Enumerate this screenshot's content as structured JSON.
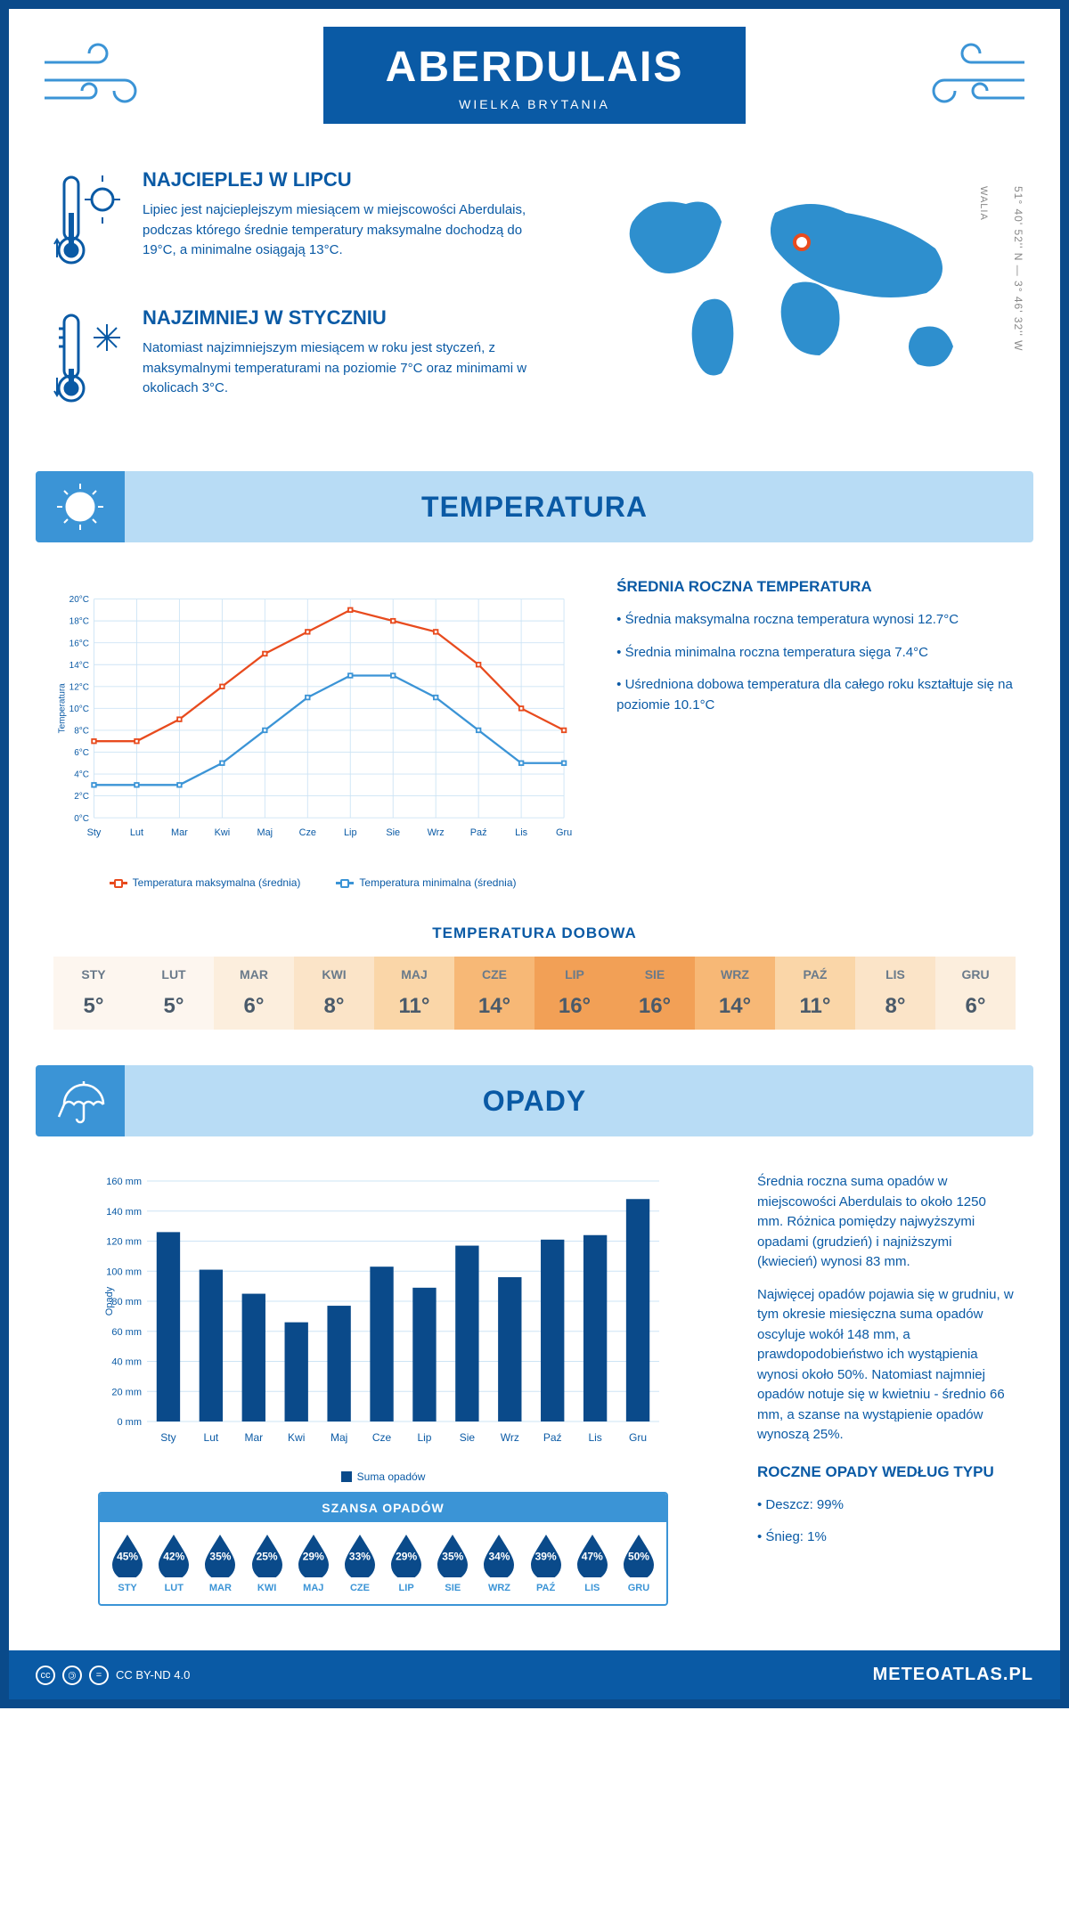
{
  "header": {
    "title": "ABERDULAIS",
    "subtitle": "WIELKA BRYTANIA"
  },
  "coords": "51° 40' 52'' N — 3° 46' 32'' W",
  "region": "WALIA",
  "marker_pos": {
    "left_pct": 48,
    "top_pct": 28
  },
  "intro": {
    "hot": {
      "title": "NAJCIEPLEJ W LIPCU",
      "text": "Lipiec jest najcieplejszym miesiącem w miejscowości Aberdulais, podczas którego średnie temperatury maksymalne dochodzą do 19°C, a minimalne osiągają 13°C."
    },
    "cold": {
      "title": "NAJZIMNIEJ W STYCZNIU",
      "text": "Natomiast najzimniejszym miesiącem w roku jest styczeń, z maksymalnymi temperaturami na poziomie 7°C oraz minimami w okolicach 3°C."
    }
  },
  "temp_section_title": "TEMPERATURA",
  "temp_chart": {
    "type": "line",
    "months": [
      "Sty",
      "Lut",
      "Mar",
      "Kwi",
      "Maj",
      "Cze",
      "Lip",
      "Sie",
      "Wrz",
      "Paź",
      "Lis",
      "Gru"
    ],
    "max": [
      7,
      7,
      9,
      12,
      15,
      17,
      19,
      18,
      17,
      14,
      10,
      8
    ],
    "min": [
      3,
      3,
      3,
      5,
      8,
      11,
      13,
      13,
      11,
      8,
      5,
      5
    ],
    "ylim": [
      0,
      20
    ],
    "ytick_step": 2,
    "y_unit": "°C",
    "y_axis_label": "Temperatura",
    "max_color": "#e84b1e",
    "min_color": "#3b94d6",
    "grid_color": "#cde4f5",
    "bg": "#ffffff",
    "line_width": 2.5,
    "marker_size": 5,
    "legend": {
      "max": "Temperatura maksymalna (średnia)",
      "min": "Temperatura minimalna (średnia)"
    }
  },
  "temp_side": {
    "title": "ŚREDNIA ROCZNA TEMPERATURA",
    "bullets": [
      "• Średnia maksymalna roczna temperatura wynosi 12.7°C",
      "• Średnia minimalna roczna temperatura sięga 7.4°C",
      "• Uśredniona dobowa temperatura dla całego roku kształtuje się na poziomie 10.1°C"
    ]
  },
  "daily": {
    "title": "TEMPERATURA DOBOWA",
    "months": [
      "STY",
      "LUT",
      "MAR",
      "KWI",
      "MAJ",
      "CZE",
      "LIP",
      "SIE",
      "WRZ",
      "PAŹ",
      "LIS",
      "GRU"
    ],
    "values": [
      "5°",
      "5°",
      "6°",
      "8°",
      "11°",
      "14°",
      "16°",
      "16°",
      "14°",
      "11°",
      "8°",
      "6°"
    ],
    "colors": [
      "#fdf6ef",
      "#fdf6ef",
      "#fceedd",
      "#fbe4c8",
      "#fad6a8",
      "#f7b876",
      "#f2a056",
      "#f2a056",
      "#f7b876",
      "#fad6a8",
      "#fbe4c8",
      "#fceedd"
    ]
  },
  "precip_section_title": "OPADY",
  "precip_chart": {
    "type": "bar",
    "months": [
      "Sty",
      "Lut",
      "Mar",
      "Kwi",
      "Maj",
      "Cze",
      "Lip",
      "Sie",
      "Wrz",
      "Paź",
      "Lis",
      "Gru"
    ],
    "values": [
      126,
      101,
      85,
      66,
      77,
      103,
      89,
      117,
      96,
      121,
      124,
      148
    ],
    "ylim": [
      0,
      160
    ],
    "ytick_step": 20,
    "y_unit": " mm",
    "y_axis_label": "Opady",
    "bar_color": "#0a4a8a",
    "grid_color": "#cde4f5",
    "legend_label": "Suma opadów",
    "bar_width": 0.55
  },
  "precip_side": {
    "para1": "Średnia roczna suma opadów w miejscowości Aberdulais to około 1250 mm. Różnica pomiędzy najwyższymi opadami (grudzień) i najniższymi (kwiecień) wynosi 83 mm.",
    "para2": "Najwięcej opadów pojawia się w grudniu, w tym okresie miesięczna suma opadów oscyluje wokół 148 mm, a prawdopodobieństwo ich wystąpienia wynosi około 50%. Natomiast najmniej opadów notuje się w kwietniu - średnio 66 mm, a szanse na wystąpienie opadów wynoszą 25%.",
    "type_title": "ROCZNE OPADY WEDŁUG TYPU",
    "type_bullets": [
      "• Deszcz: 99%",
      "• Śnieg: 1%"
    ]
  },
  "chance": {
    "title": "SZANSA OPADÓW",
    "months": [
      "STY",
      "LUT",
      "MAR",
      "KWI",
      "MAJ",
      "CZE",
      "LIP",
      "SIE",
      "WRZ",
      "PAŹ",
      "LIS",
      "GRU"
    ],
    "values": [
      "45%",
      "42%",
      "35%",
      "25%",
      "29%",
      "33%",
      "29%",
      "35%",
      "34%",
      "39%",
      "47%",
      "50%"
    ],
    "drop_color": "#0a4a8a"
  },
  "footer": {
    "license": "CC BY-ND 4.0",
    "site": "METEOATLAS.PL"
  },
  "colors": {
    "primary": "#0a5aa5",
    "dark": "#0a4a8a",
    "light": "#b8dcf5",
    "accent_blue": "#3b94d6",
    "accent_orange": "#e84b1e"
  }
}
